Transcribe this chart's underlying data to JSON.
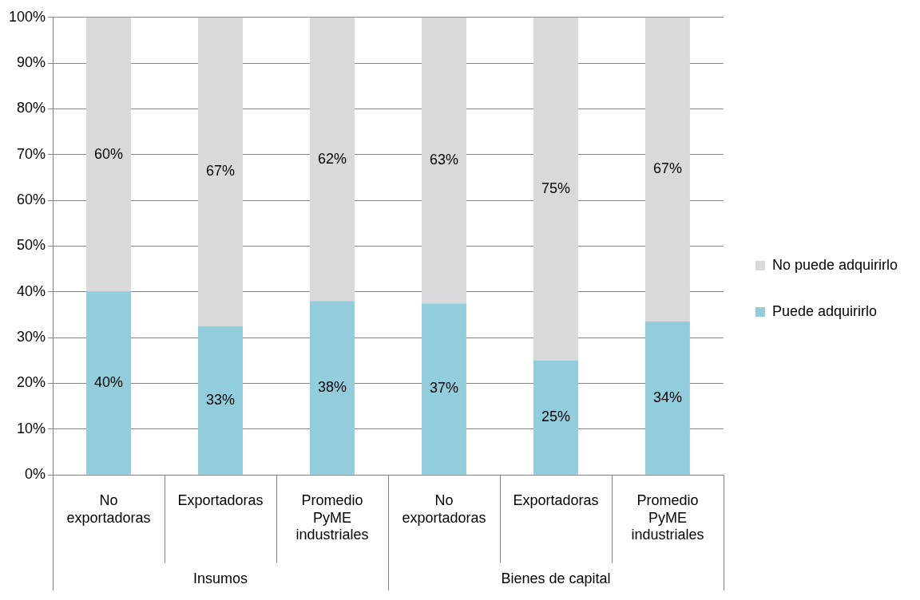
{
  "chart_data": {
    "type": "bar",
    "stacked": true,
    "categories": [
      "No\nexportadoras",
      "Exportadoras",
      "Promedio\nPyME\nindustriales",
      "No\nexportadoras",
      "Exportadoras",
      "Promedio\nPyME\nindustriales"
    ],
    "series": [
      {
        "name": "Puede adquirirlo",
        "color": "#92cddc",
        "values": [
          40,
          32.5,
          38,
          37.5,
          25,
          33.5
        ],
        "value_labels": [
          "40%",
          "33%",
          "38%",
          "37%",
          "25%",
          "34%"
        ]
      },
      {
        "name": "No puede adquirirlo",
        "color": "#d9d9d9",
        "values": [
          60,
          67.5,
          62,
          62.5,
          75,
          66.5
        ],
        "value_labels": [
          "60%",
          "67%",
          "62%",
          "63%",
          "75%",
          "67%"
        ]
      }
    ],
    "ylim": [
      0,
      100
    ],
    "yticks": [
      {
        "value": 0,
        "label": "0%"
      },
      {
        "value": 10,
        "label": "10%"
      },
      {
        "value": 20,
        "label": "20%"
      },
      {
        "value": 30,
        "label": "30%"
      },
      {
        "value": 40,
        "label": "40%"
      },
      {
        "value": 50,
        "label": "50%"
      },
      {
        "value": 60,
        "label": "60%"
      },
      {
        "value": 70,
        "label": "70%"
      },
      {
        "value": 80,
        "label": "80%"
      },
      {
        "value": 90,
        "label": "90%"
      },
      {
        "value": 100,
        "label": "100%"
      }
    ],
    "grid": "y",
    "legend": "right",
    "annotations": [
      "Insumos",
      "Bienes de capital"
    ]
  }
}
